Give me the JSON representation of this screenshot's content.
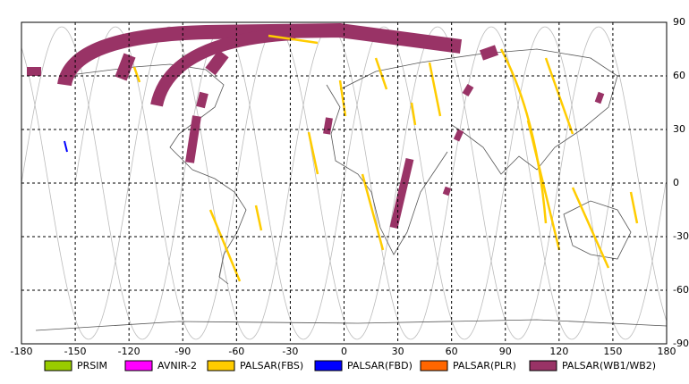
{
  "map": {
    "xlim": [
      -180,
      180
    ],
    "ylim": [
      -90,
      90
    ],
    "xticks": [
      -180,
      -150,
      -120,
      -90,
      -60,
      -30,
      0,
      30,
      60,
      90,
      120,
      150,
      180
    ],
    "yticks": [
      90,
      60,
      30,
      0,
      -30,
      -60,
      -90
    ],
    "legend": [
      {
        "name": "PRSIM",
        "color": "#99cc00"
      },
      {
        "name": "AVNIR-2",
        "color": "#ff00ff"
      },
      {
        "name": "PALSAR(FBS)",
        "color": "#ffcc00"
      },
      {
        "name": "PALSAR(FBD)",
        "color": "#0000ff"
      },
      {
        "name": "PALSAR(PLR)",
        "color": "#ff6600"
      },
      {
        "name": "PALSAR(WB1/WB2)",
        "color": "#993366"
      }
    ]
  }
}
